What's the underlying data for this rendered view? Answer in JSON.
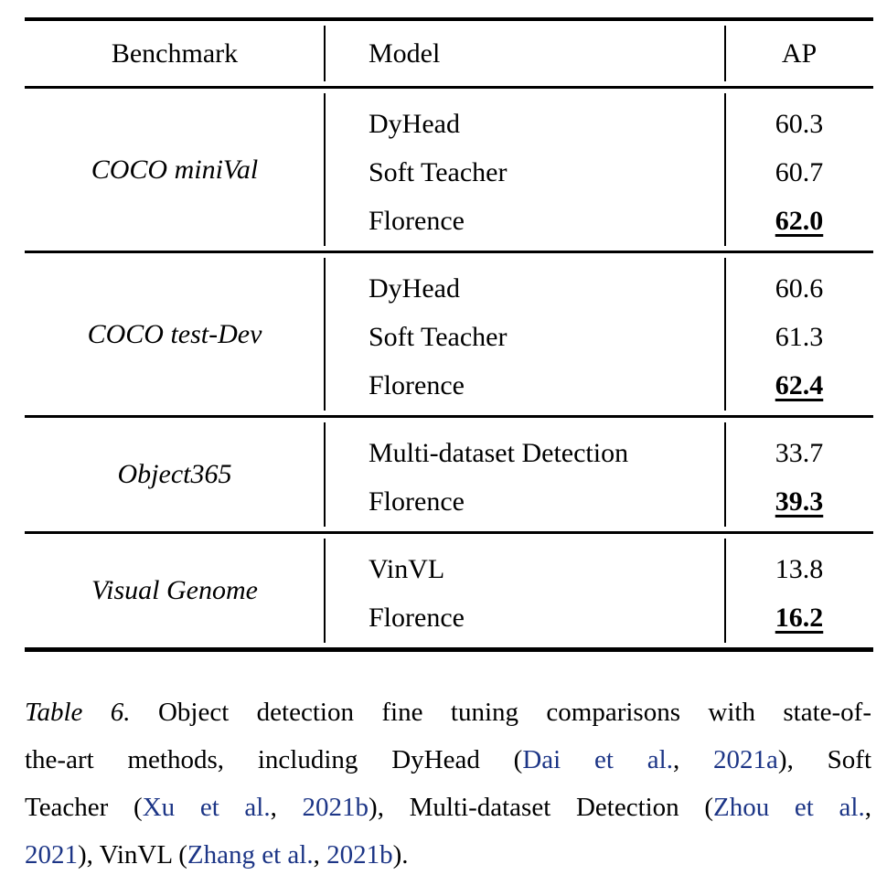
{
  "colors": {
    "text": "#000000",
    "citation": "#1c3586",
    "background": "#ffffff"
  },
  "table": {
    "headers": [
      "Benchmark",
      "Model",
      "AP"
    ],
    "groups": [
      {
        "benchmark": "COCO miniVal",
        "rows": [
          {
            "model": "DyHead",
            "ap": "60.3",
            "best": false
          },
          {
            "model": "Soft Teacher",
            "ap": "60.7",
            "best": false
          },
          {
            "model": "Florence",
            "ap": "62.0",
            "best": true
          }
        ]
      },
      {
        "benchmark": "COCO test-Dev",
        "rows": [
          {
            "model": "DyHead",
            "ap": "60.6",
            "best": false
          },
          {
            "model": "Soft Teacher",
            "ap": "61.3",
            "best": false
          },
          {
            "model": "Florence",
            "ap": "62.4",
            "best": true
          }
        ]
      },
      {
        "benchmark": "Object365",
        "rows": [
          {
            "model": "Multi-dataset Detection",
            "ap": "33.7",
            "best": false
          },
          {
            "model": "Florence",
            "ap": "39.3",
            "best": true
          }
        ]
      },
      {
        "benchmark": "Visual Genome",
        "rows": [
          {
            "model": "VinVL",
            "ap": "13.8",
            "best": false
          },
          {
            "model": "Florence",
            "ap": "16.2",
            "best": true
          }
        ]
      }
    ]
  },
  "caption": {
    "label": "Table 6.",
    "full_text": "Table 6. Object detection fine tuning comparisons with state-of-the-art methods, including DyHead (Dai et al., 2021a), Soft Teacher (Xu et al., 2021b), Multi-dataset Detection (Zhou et al., 2021), VinVL (Zhang et al., 2021b).",
    "lines": [
      [
        {
          "text": "Table 6.",
          "style": "italic"
        },
        {
          "text": " Object detection fine tuning comparisons with state-of-",
          "style": "normal"
        }
      ],
      [
        {
          "text": "the-art methods, including DyHead (",
          "style": "normal"
        },
        {
          "text": "Dai et al.",
          "style": "link"
        },
        {
          "text": ", ",
          "style": "normal"
        },
        {
          "text": "2021a",
          "style": "link"
        },
        {
          "text": "), Soft",
          "style": "normal"
        }
      ],
      [
        {
          "text": "Teacher (",
          "style": "normal"
        },
        {
          "text": "Xu et al.",
          "style": "link"
        },
        {
          "text": ", ",
          "style": "normal"
        },
        {
          "text": "2021b",
          "style": "link"
        },
        {
          "text": "), Multi-dataset Detection (",
          "style": "normal"
        },
        {
          "text": "Zhou et al.",
          "style": "link"
        },
        {
          "text": ",",
          "style": "normal"
        }
      ],
      [
        {
          "text": "2021",
          "style": "link"
        },
        {
          "text": "), VinVL (",
          "style": "normal"
        },
        {
          "text": "Zhang et al.",
          "style": "link"
        },
        {
          "text": ", ",
          "style": "normal"
        },
        {
          "text": "2021b",
          "style": "link"
        },
        {
          "text": ").",
          "style": "normal"
        }
      ]
    ]
  }
}
